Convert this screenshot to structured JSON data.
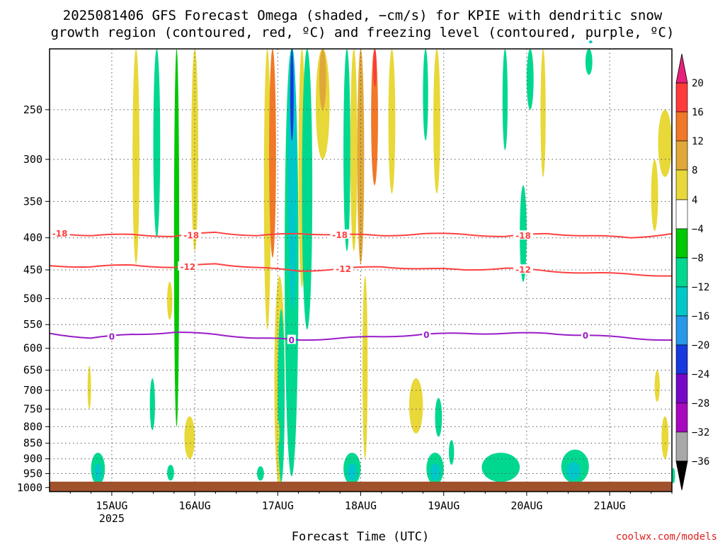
{
  "chart_data": {
    "type": "heatmap",
    "title_line1": "2025081406 GFS Forecast Omega (shaded, −cm/s) for KPIE with dendritic snow",
    "title_line2": "growth region (contoured, red, ºC) and freezing level (contoured, purple, ºC)",
    "xlabel": "Forecast Time (UTC)",
    "credit": "coolwx.com/models",
    "x_ticks": [
      {
        "label": "15AUG",
        "sub": "2025",
        "hour": 24
      },
      {
        "label": "16AUG",
        "hour": 48
      },
      {
        "label": "17AUG",
        "hour": 72
      },
      {
        "label": "18AUG",
        "hour": 96
      },
      {
        "label": "19AUG",
        "hour": 120
      },
      {
        "label": "20AUG",
        "hour": 144
      },
      {
        "label": "21AUG",
        "hour": 168
      }
    ],
    "x_range_hours": [
      6,
      186
    ],
    "y_ticks": [
      "250",
      "300",
      "350",
      "400",
      "450",
      "500",
      "550",
      "600",
      "650",
      "700",
      "750",
      "800",
      "850",
      "900",
      "950",
      "1000"
    ],
    "y_range_hpa": [
      200,
      1015
    ],
    "y_scale": "log-pressure",
    "grid": true,
    "colorbar": {
      "labels": [
        "20",
        "16",
        "12",
        "8",
        "4",
        "−4",
        "−8",
        "−12",
        "−16",
        "−20",
        "−24",
        "−28",
        "−32",
        "−36"
      ],
      "colors": [
        "#ff3a3a",
        "#f07828",
        "#e0a838",
        "#e8d838",
        "#ffffff",
        "#00c800",
        "#00d890",
        "#00c8c8",
        "#2898e8",
        "#1838e0",
        "#7808c8",
        "#a808c0",
        "#a8a8a8"
      ],
      "top_arrow_color": "#e8207c",
      "bottom_arrow_color": "#000000"
    },
    "ground_color": "#a0522d",
    "contours": [
      {
        "label": "-18",
        "color": "#ff4040",
        "level_hpa": [
          392,
          397,
          395,
          398,
          392,
          397,
          394,
          395,
          397,
          394,
          395,
          398,
          394,
          397,
          400,
          394
        ],
        "label_hours": [
          9,
          47,
          90,
          143
        ]
      },
      {
        "label": "-12",
        "color": "#ff4040",
        "level_hpa": [
          443,
          445,
          442,
          446,
          440,
          446,
          452,
          448,
          445,
          448,
          450,
          447,
          452,
          455,
          457,
          460
        ],
        "label_hours": [
          46,
          91,
          143
        ]
      },
      {
        "label": "0",
        "color": "#9a1cc8",
        "level_hpa": [
          568,
          578,
          570,
          566,
          570,
          578,
          582,
          578,
          575,
          570,
          568,
          568,
          568,
          572,
          578,
          582
        ],
        "label_hours": [
          24,
          76,
          115,
          161
        ]
      }
    ],
    "omega_features": [
      {
        "t0": 30,
        "t1": 32,
        "p0": 130,
        "p1": 440,
        "v": 4
      },
      {
        "t0": 36,
        "t1": 38,
        "p0": 130,
        "p1": 400,
        "v": -8
      },
      {
        "t0": 42,
        "t1": 43.5,
        "p0": 150,
        "p1": 800,
        "v": -4
      },
      {
        "t0": 47,
        "t1": 49,
        "p0": 130,
        "p1": 420,
        "v": 4
      },
      {
        "t0": 45,
        "t1": 48,
        "p0": 770,
        "p1": 900,
        "v": 4
      },
      {
        "t0": 40,
        "t1": 41.5,
        "p0": 470,
        "p1": 540,
        "v": 4
      },
      {
        "t0": 68,
        "t1": 70,
        "p0": 130,
        "p1": 560,
        "v": 4
      },
      {
        "t0": 69.5,
        "t1": 71.5,
        "p0": 200,
        "p1": 430,
        "v": 12
      },
      {
        "t0": 71,
        "t1": 74,
        "p0": 460,
        "p1": 1000,
        "v": 4
      },
      {
        "t0": 72,
        "t1": 74,
        "p0": 520,
        "p1": 980,
        "v": -8
      },
      {
        "t0": 74,
        "t1": 78,
        "p0": 130,
        "p1": 960,
        "v": -8
      },
      {
        "t0": 75,
        "t1": 77.5,
        "p0": 140,
        "p1": 520,
        "v": -12
      },
      {
        "t0": 75.6,
        "t1": 76.6,
        "p0": 200,
        "p1": 280,
        "v": -20
      },
      {
        "t0": 78,
        "t1": 80,
        "p0": 180,
        "p1": 480,
        "v": 4
      },
      {
        "t0": 79,
        "t1": 82,
        "p0": 200,
        "p1": 560,
        "v": -8
      },
      {
        "t0": 83,
        "t1": 87,
        "p0": 130,
        "p1": 300,
        "v": 4
      },
      {
        "t0": 84,
        "t1": 86,
        "p0": 140,
        "p1": 250,
        "v": 8
      },
      {
        "t0": 91,
        "t1": 93,
        "p0": 150,
        "p1": 420,
        "v": -8
      },
      {
        "t0": 93,
        "t1": 95,
        "p0": 200,
        "p1": 420,
        "v": 4
      },
      {
        "t0": 95,
        "t1": 97,
        "p0": 180,
        "p1": 440,
        "v": 8
      },
      {
        "t0": 96.5,
        "t1": 98,
        "p0": 460,
        "p1": 900,
        "v": 4
      },
      {
        "t0": 99,
        "t1": 101,
        "p0": 130,
        "p1": 330,
        "v": 12
      },
      {
        "t0": 99.6,
        "t1": 100.6,
        "p0": 150,
        "p1": 230,
        "v": 16
      },
      {
        "t0": 104,
        "t1": 106,
        "p0": 200,
        "p1": 340,
        "v": 4
      },
      {
        "t0": 114,
        "t1": 115.5,
        "p0": 160,
        "p1": 280,
        "v": -8
      },
      {
        "t0": 117,
        "t1": 119,
        "p0": 170,
        "p1": 340,
        "v": 4
      },
      {
        "t0": 144,
        "t1": 146,
        "p0": 130,
        "p1": 250,
        "v": -8
      },
      {
        "t0": 161,
        "t1": 163,
        "p0": 130,
        "p1": 220,
        "v": -8
      },
      {
        "t0": 162,
        "t1": 163,
        "p0": 150,
        "p1": 190,
        "v": -12
      },
      {
        "t0": 182,
        "t1": 186,
        "p0": 250,
        "p1": 320,
        "v": 4
      },
      {
        "t0": 180,
        "t1": 182,
        "p0": 300,
        "p1": 390,
        "v": 4
      },
      {
        "t0": 142,
        "t1": 144,
        "p0": 330,
        "p1": 470,
        "v": -8
      },
      {
        "t0": 137,
        "t1": 138.5,
        "p0": 190,
        "p1": 290,
        "v": -8
      },
      {
        "t0": 148,
        "t1": 149.5,
        "p0": 160,
        "p1": 320,
        "v": 4
      },
      {
        "t0": 17,
        "t1": 18,
        "p0": 640,
        "p1": 750,
        "v": 4
      },
      {
        "t0": 35,
        "t1": 36.5,
        "p0": 670,
        "p1": 810,
        "v": -8
      },
      {
        "t0": 71.5,
        "t1": 72.5,
        "p0": 780,
        "p1": 860,
        "v": 4
      },
      {
        "t0": 110,
        "t1": 114,
        "p0": 670,
        "p1": 820,
        "v": 4
      },
      {
        "t0": 117.5,
        "t1": 119.5,
        "p0": 720,
        "p1": 830,
        "v": -8
      },
      {
        "t0": 121.5,
        "t1": 123,
        "p0": 840,
        "p1": 920,
        "v": -8
      },
      {
        "t0": 181,
        "t1": 182.5,
        "p0": 650,
        "p1": 730,
        "v": 4
      },
      {
        "t0": 183,
        "t1": 185,
        "p0": 770,
        "p1": 900,
        "v": 4
      },
      {
        "t0": 18,
        "t1": 22,
        "p0": 880,
        "p1": 990,
        "v": -8
      },
      {
        "t0": 19,
        "t1": 21,
        "p0": 915,
        "p1": 975,
        "v": -12
      },
      {
        "t0": 40,
        "t1": 42,
        "p0": 920,
        "p1": 975,
        "v": -8
      },
      {
        "t0": 66,
        "t1": 68,
        "p0": 925,
        "p1": 975,
        "v": -8
      },
      {
        "t0": 91,
        "t1": 96,
        "p0": 880,
        "p1": 990,
        "v": -8
      },
      {
        "t0": 92,
        "t1": 95,
        "p0": 915,
        "p1": 975,
        "v": -12
      },
      {
        "t0": 115,
        "t1": 120,
        "p0": 880,
        "p1": 990,
        "v": -8
      },
      {
        "t0": 116,
        "t1": 119,
        "p0": 915,
        "p1": 975,
        "v": -12
      },
      {
        "t0": 131,
        "t1": 142,
        "p0": 880,
        "p1": 980,
        "v": -8
      },
      {
        "t0": 154,
        "t1": 162,
        "p0": 870,
        "p1": 985,
        "v": -8
      },
      {
        "t0": 155.5,
        "t1": 159.5,
        "p0": 910,
        "p1": 975,
        "v": -12
      },
      {
        "t0": 186,
        "t1": 186.9,
        "p0": 930,
        "p1": 985,
        "v": -8
      }
    ]
  }
}
